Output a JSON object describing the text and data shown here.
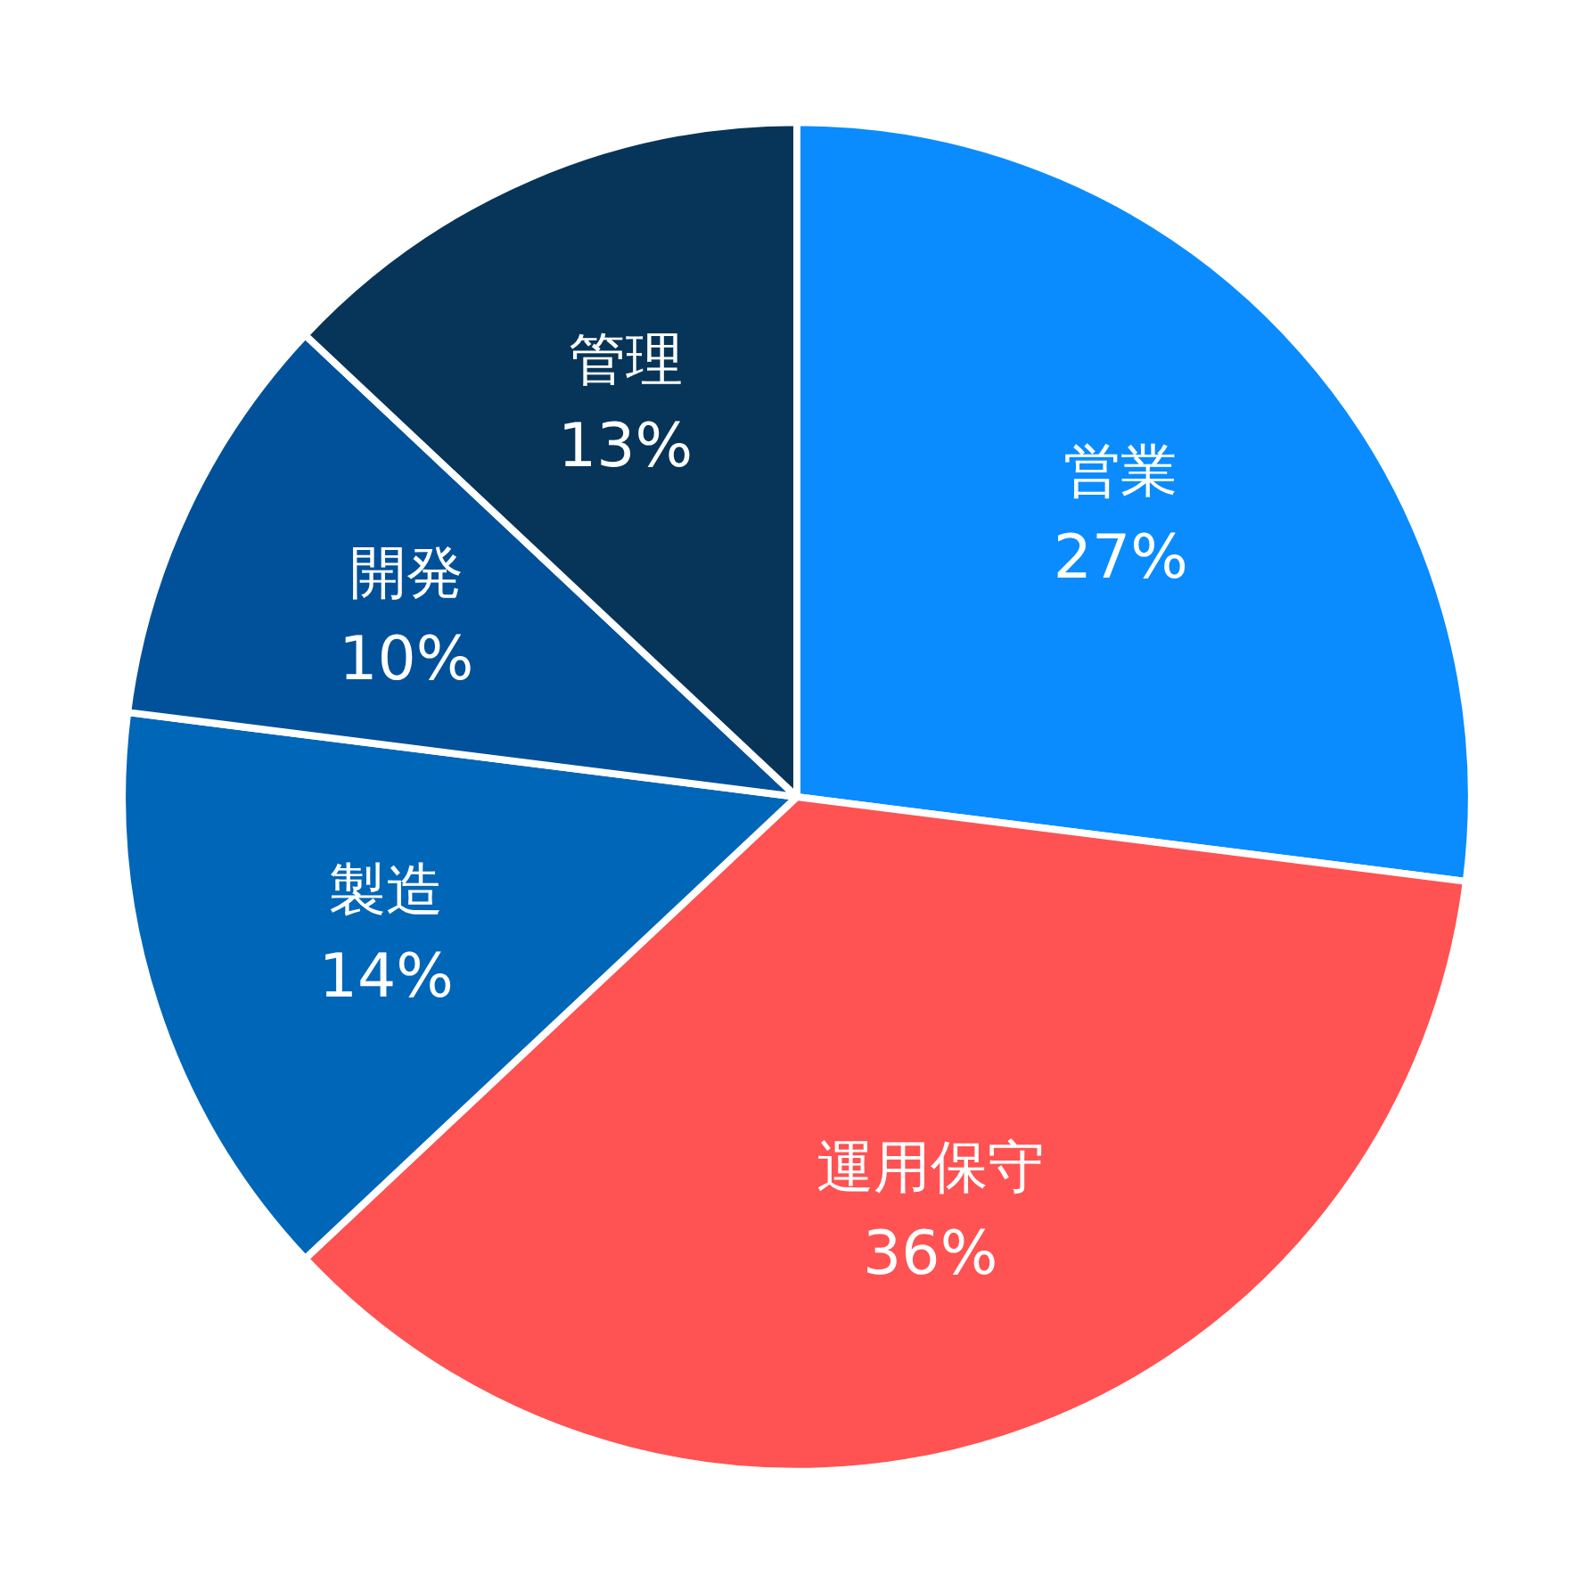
{
  "chart_data": {
    "type": "pie",
    "categories": [
      "営業",
      "運用保守",
      "製造",
      "開発",
      "管理"
    ],
    "values": [
      27,
      36,
      14,
      10,
      13
    ],
    "value_labels": [
      "27%",
      "36%",
      "14%",
      "10%",
      "13%"
    ],
    "colors": [
      "#0a8cff",
      "#ff5252",
      "#0066b8",
      "#00519a",
      "#073559"
    ]
  }
}
